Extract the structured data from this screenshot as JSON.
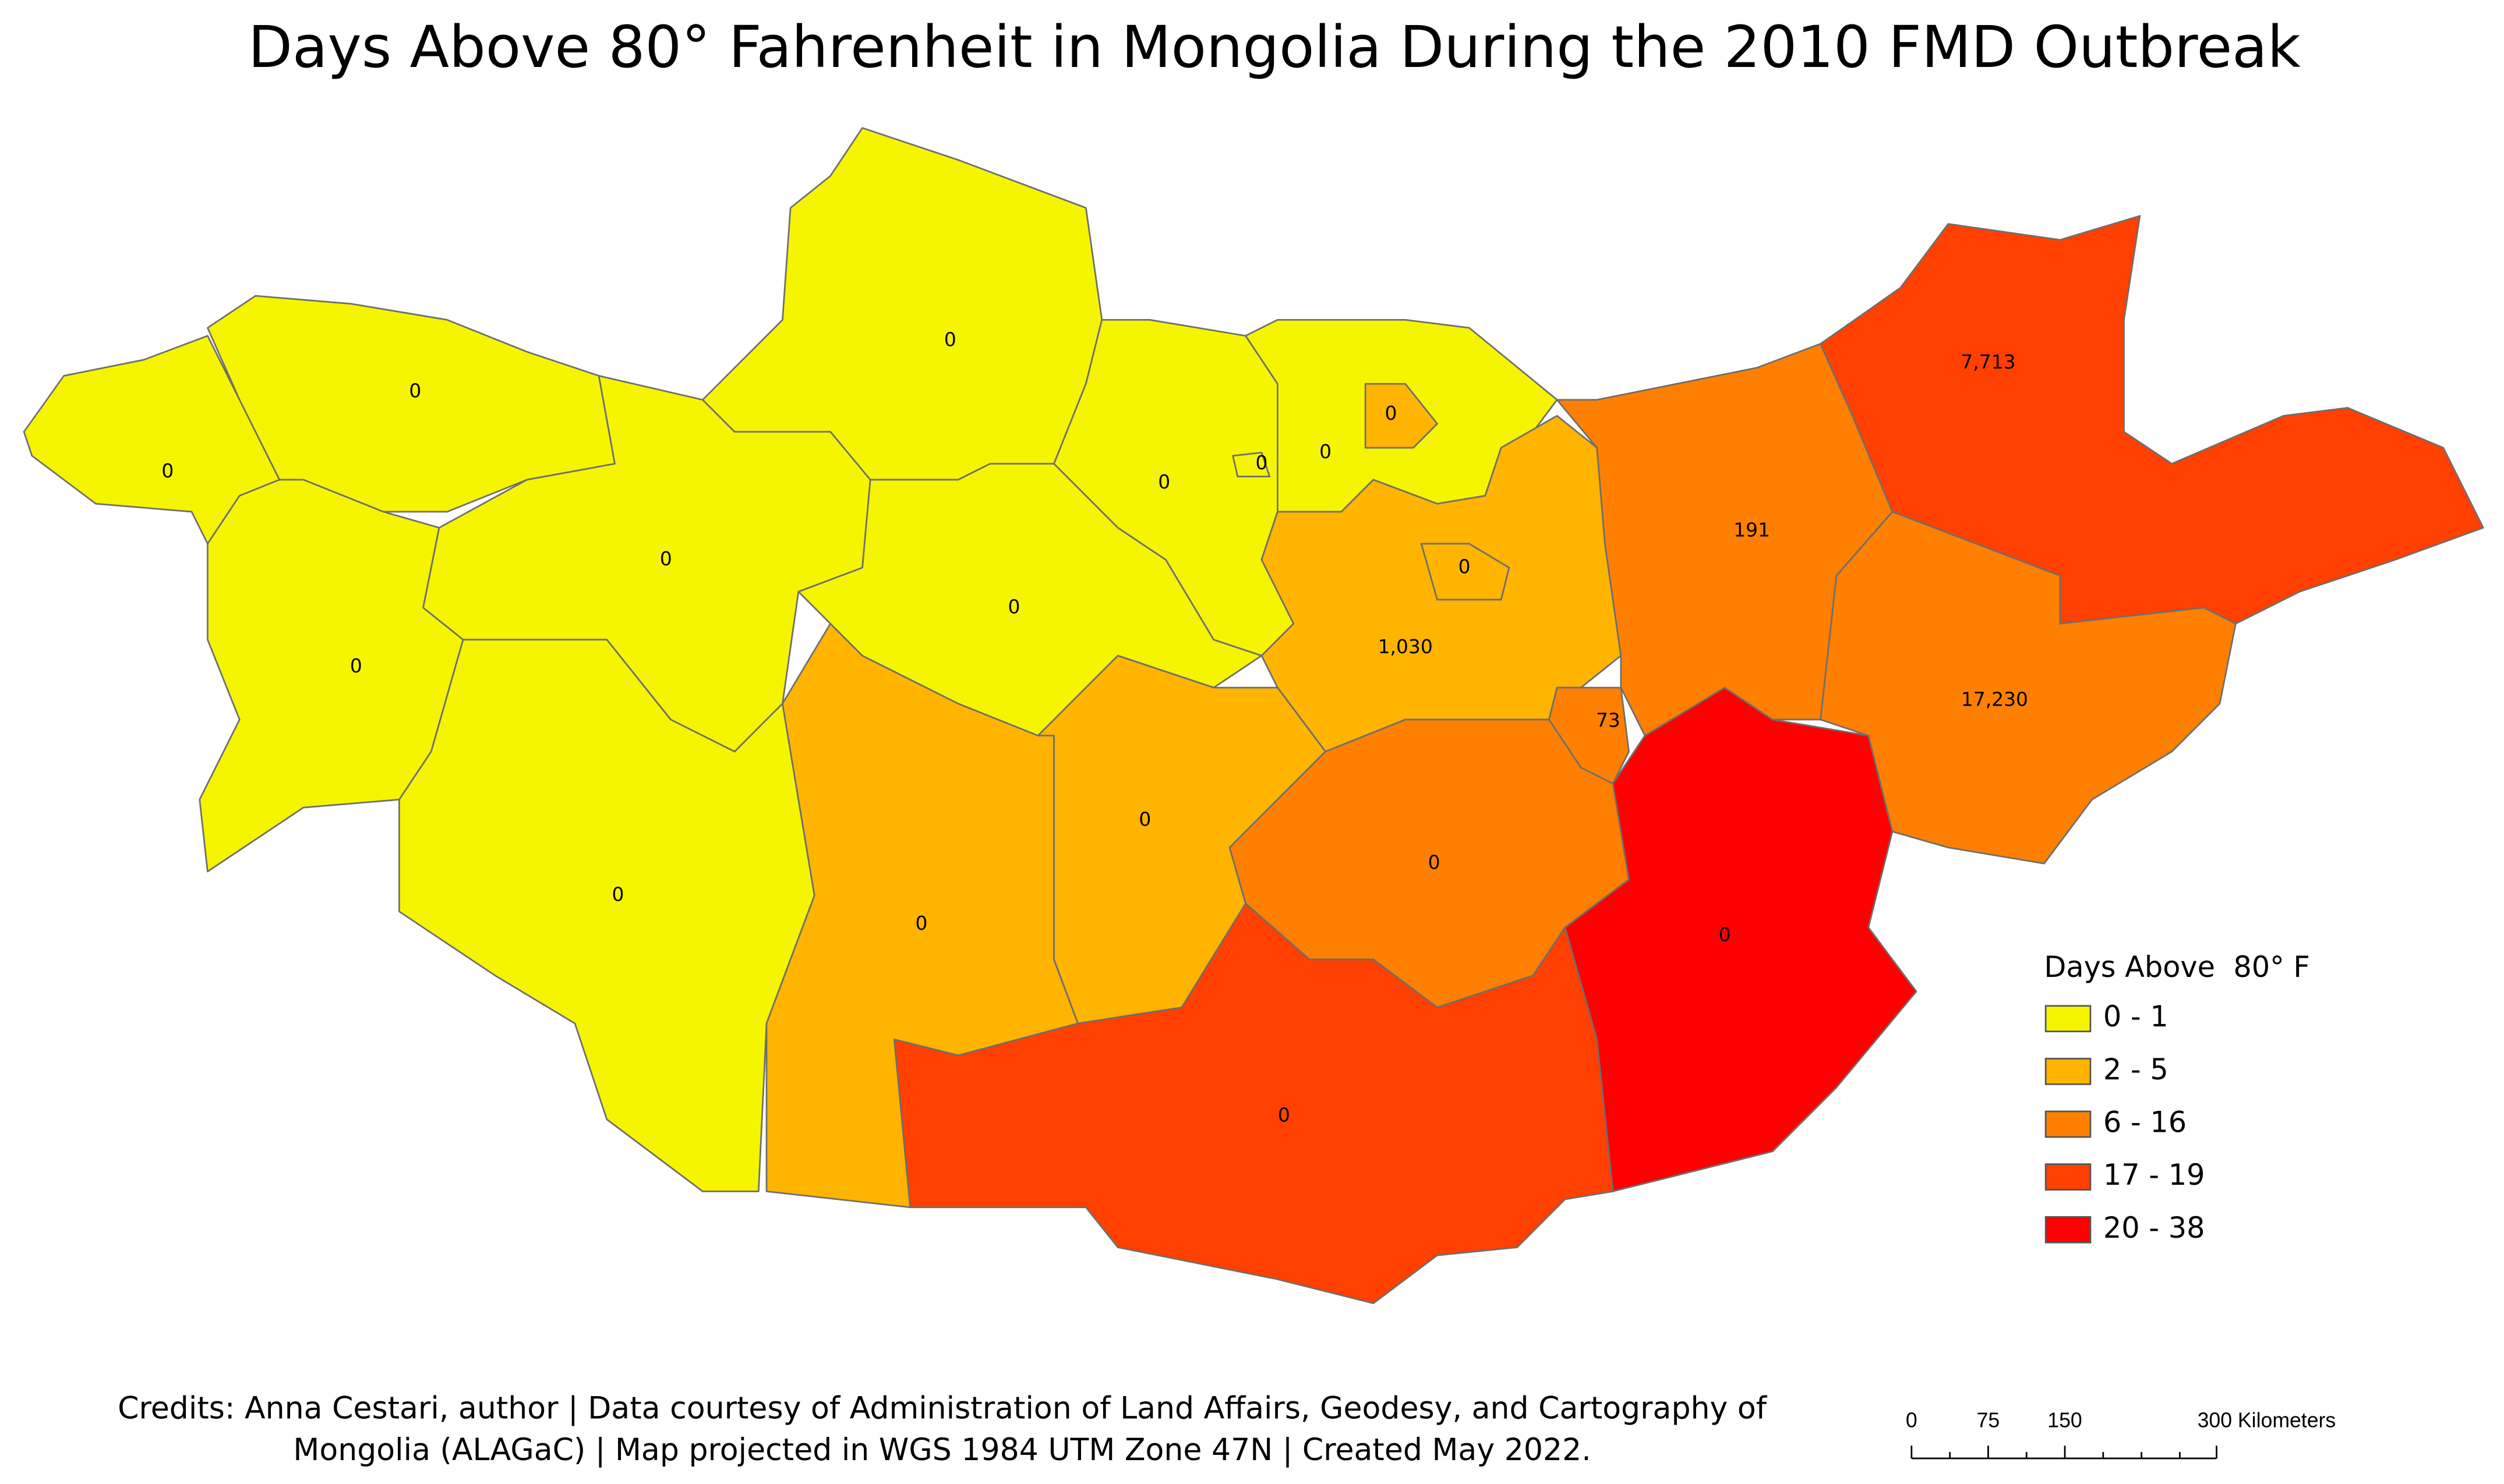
{
  "title": "Days Above 80° Fahrenheit in Mongolia During the 2010 FMD Outbreak",
  "regions": [
    {
      "label": "0",
      "color": "#f5f500"
    },
    {
      "label": "0",
      "color": "#f5f500"
    },
    {
      "label": "0",
      "color": "#f5f500"
    },
    {
      "label": "0",
      "color": "#f5f500"
    },
    {
      "label": "0",
      "color": "#f5f500"
    },
    {
      "label": "0",
      "color": "#f5f500"
    },
    {
      "label": "0",
      "color": "#ffb400"
    },
    {
      "label": "0",
      "color": "#f5f500"
    },
    {
      "label": "0",
      "color": "#f5f500"
    },
    {
      "label": "0",
      "color": "#f5f500"
    },
    {
      "label": "0",
      "color": "#ffb400"
    },
    {
      "label": "0",
      "color": "#f5f500"
    },
    {
      "label": "1,030",
      "color": "#ffb400"
    },
    {
      "label": "0",
      "color": "#ffb400"
    },
    {
      "label": "0",
      "color": "#ffb400"
    },
    {
      "label": "0",
      "color": "#ff8000"
    },
    {
      "label": "73",
      "color": "#ff8000"
    },
    {
      "label": "0",
      "color": "#ff4000"
    },
    {
      "label": "0",
      "color": "#ff0000"
    },
    {
      "label": "191",
      "color": "#ff8000"
    },
    {
      "label": "7,713",
      "color": "#ff4000"
    },
    {
      "label": "17,230",
      "color": "#ff8000"
    }
  ],
  "legend": {
    "title": "Days Above  80° F",
    "items": [
      {
        "label": "0 - 1",
        "color": "#f5f500"
      },
      {
        "label": "2 - 5",
        "color": "#ffb400"
      },
      {
        "label": "6 - 16",
        "color": "#ff8000"
      },
      {
        "label": "17 - 19",
        "color": "#ff4000"
      },
      {
        "label": "20 - 38",
        "color": "#ff0000"
      }
    ]
  },
  "credits": [
    "Credits: Anna Cestari, author | Data courtesy of Administration of Land Affairs, Geodesy, and Cartography of",
    "Mongolia (ALAGaC) | Map projected in WGS 1984 UTM Zone 47N | Created May 2022."
  ],
  "scale_bar": [
    "0",
    "75",
    "150",
    "300 Kilometers"
  ]
}
